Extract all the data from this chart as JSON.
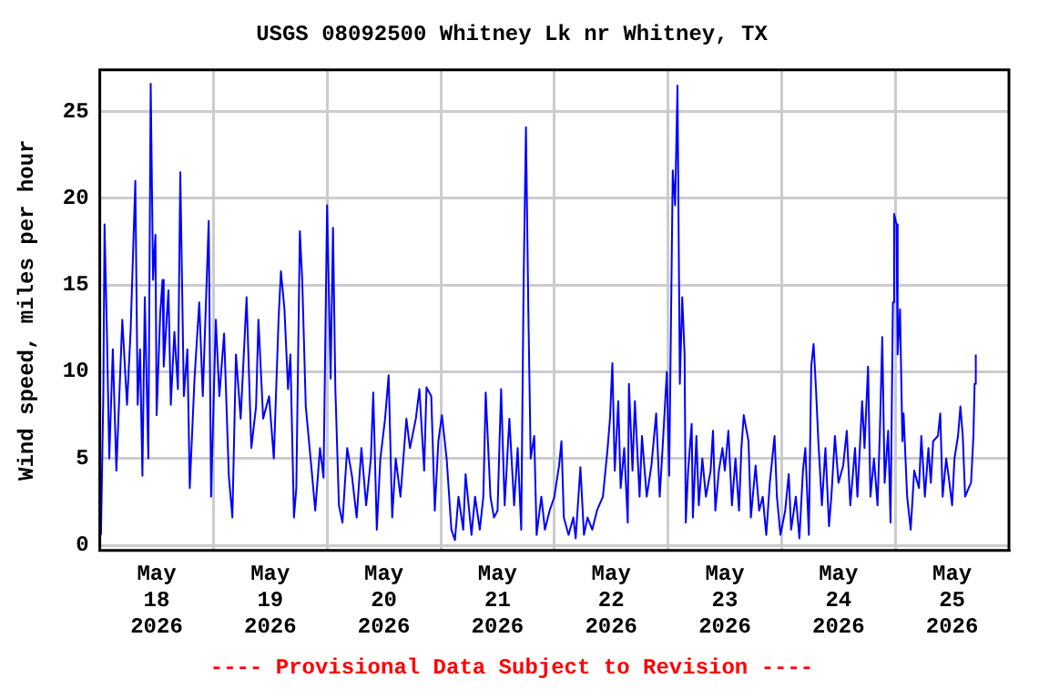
{
  "chart_data": {
    "type": "line",
    "title": "USGS 08092500 Whitney Lk nr Whitney, TX",
    "ylabel": "Wind speed, miles per hour",
    "annotations": [
      "---- Provisional Data Subject to Revision ----"
    ],
    "xlim": [
      "2026-05-18T00:00",
      "2026-05-26T00:00"
    ],
    "xticks": [
      {
        "value": "2026-05-18T12:00",
        "label": "May\n18\n2026"
      },
      {
        "value": "2026-05-19T00:00",
        "label": null
      },
      {
        "value": "2026-05-19T12:00",
        "label": "May\n19\n2026"
      },
      {
        "value": "2026-05-20T00:00",
        "label": null
      },
      {
        "value": "2026-05-20T12:00",
        "label": "May\n20\n2026"
      },
      {
        "value": "2026-05-21T00:00",
        "label": null
      },
      {
        "value": "2026-05-21T12:00",
        "label": "May\n21\n2026"
      },
      {
        "value": "2026-05-22T00:00",
        "label": null
      },
      {
        "value": "2026-05-22T12:00",
        "label": "May\n22\n2026"
      },
      {
        "value": "2026-05-23T00:00",
        "label": null
      },
      {
        "value": "2026-05-23T12:00",
        "label": "May\n23\n2026"
      },
      {
        "value": "2026-05-24T00:00",
        "label": null
      },
      {
        "value": "2026-05-24T12:00",
        "label": "May\n24\n2026"
      },
      {
        "value": "2026-05-25T00:00",
        "label": null
      },
      {
        "value": "2026-05-25T12:00",
        "label": "May\n25\n2026"
      }
    ],
    "ylim": [
      -0.3,
      27.4
    ],
    "yticks": [
      0,
      5,
      10,
      15,
      20,
      25
    ],
    "grid": true,
    "legend": false,
    "marker": "none",
    "line_style": "solid",
    "series": [
      {
        "color": "#0000ff",
        "x": [
          "2026-05-18T00:15",
          "2026-05-18T00:45",
          "2026-05-18T01:00",
          "2026-05-18T01:30",
          "2026-05-18T02:00",
          "2026-05-18T02:45",
          "2026-05-18T03:30",
          "2026-05-18T04:45",
          "2026-05-18T05:45",
          "2026-05-18T06:30",
          "2026-05-18T07:30",
          "2026-05-18T08:00",
          "2026-05-18T08:30",
          "2026-05-18T09:00",
          "2026-05-18T09:30",
          "2026-05-18T10:15",
          "2026-05-18T10:45",
          "2026-05-18T11:15",
          "2026-05-18T11:45",
          "2026-05-18T12:00",
          "2026-05-18T12:45",
          "2026-05-18T13:15",
          "2026-05-18T13:30",
          "2026-05-18T14:30",
          "2026-05-18T15:00",
          "2026-05-18T15:45",
          "2026-05-18T16:30",
          "2026-05-18T17:00",
          "2026-05-18T17:45",
          "2026-05-18T18:30",
          "2026-05-18T19:00",
          "2026-05-18T20:00",
          "2026-05-18T21:00",
          "2026-05-18T21:45",
          "2026-05-18T23:00",
          "2026-05-18T23:30",
          "2026-05-19T00:30",
          "2026-05-19T01:15",
          "2026-05-19T02:15",
          "2026-05-19T03:15",
          "2026-05-19T04:00",
          "2026-05-19T04:45",
          "2026-05-19T05:45",
          "2026-05-19T07:00",
          "2026-05-19T08:00",
          "2026-05-19T09:00",
          "2026-05-19T09:30",
          "2026-05-19T10:30",
          "2026-05-19T11:45",
          "2026-05-19T12:45",
          "2026-05-19T13:45",
          "2026-05-19T14:15",
          "2026-05-19T15:00",
          "2026-05-19T15:45",
          "2026-05-19T16:15",
          "2026-05-19T17:00",
          "2026-05-19T17:30",
          "2026-05-19T18:15",
          "2026-05-19T18:45",
          "2026-05-19T19:30",
          "2026-05-19T20:45",
          "2026-05-19T21:30",
          "2026-05-19T22:30",
          "2026-05-19T23:15",
          "2026-05-20T00:00",
          "2026-05-20T00:45",
          "2026-05-20T01:15",
          "2026-05-20T01:45",
          "2026-05-20T02:30",
          "2026-05-20T03:15",
          "2026-05-20T03:45",
          "2026-05-20T04:15",
          "2026-05-20T05:15",
          "2026-05-20T06:15",
          "2026-05-20T07:15",
          "2026-05-20T08:15",
          "2026-05-20T09:15",
          "2026-05-20T09:45",
          "2026-05-20T10:30",
          "2026-05-20T11:15",
          "2026-05-20T12:15",
          "2026-05-20T13:00",
          "2026-05-20T13:45",
          "2026-05-20T14:30",
          "2026-05-20T15:30",
          "2026-05-20T16:45",
          "2026-05-20T17:30",
          "2026-05-20T18:45",
          "2026-05-20T19:30",
          "2026-05-20T20:30",
          "2026-05-20T21:00",
          "2026-05-20T22:00",
          "2026-05-20T22:45",
          "2026-05-20T23:30",
          "2026-05-21T00:15",
          "2026-05-21T01:15",
          "2026-05-21T02:15",
          "2026-05-21T03:00",
          "2026-05-21T03:45",
          "2026-05-21T04:45",
          "2026-05-21T05:15",
          "2026-05-21T06:30",
          "2026-05-21T07:15",
          "2026-05-21T08:15",
          "2026-05-21T09:00",
          "2026-05-21T09:30",
          "2026-05-21T10:30",
          "2026-05-21T11:15",
          "2026-05-21T12:00",
          "2026-05-21T12:45",
          "2026-05-21T13:30",
          "2026-05-21T14:30",
          "2026-05-21T15:30",
          "2026-05-21T16:15",
          "2026-05-21T17:00",
          "2026-05-21T17:30",
          "2026-05-21T18:00",
          "2026-05-21T18:30",
          "2026-05-21T19:00",
          "2026-05-21T19:45",
          "2026-05-21T20:15",
          "2026-05-21T21:15",
          "2026-05-21T22:00",
          "2026-05-21T23:00",
          "2026-05-22T00:00",
          "2026-05-22T01:00",
          "2026-05-22T01:30",
          "2026-05-22T02:00",
          "2026-05-22T03:00",
          "2026-05-22T04:00",
          "2026-05-22T04:30",
          "2026-05-22T05:30",
          "2026-05-22T06:15",
          "2026-05-22T07:00",
          "2026-05-22T08:00",
          "2026-05-22T09:00",
          "2026-05-22T10:15",
          "2026-05-22T11:15",
          "2026-05-22T11:45",
          "2026-05-22T12:15",
          "2026-05-22T12:45",
          "2026-05-22T13:30",
          "2026-05-22T14:00",
          "2026-05-22T14:45",
          "2026-05-22T15:30",
          "2026-05-22T15:45",
          "2026-05-22T16:30",
          "2026-05-22T17:00",
          "2026-05-22T18:00",
          "2026-05-22T18:30",
          "2026-05-22T19:30",
          "2026-05-22T20:30",
          "2026-05-22T21:30",
          "2026-05-22T22:15",
          "2026-05-22T23:00",
          "2026-05-22T23:45",
          "2026-05-23T00:15",
          "2026-05-23T01:00",
          "2026-05-23T01:30",
          "2026-05-23T02:00",
          "2026-05-23T02:30",
          "2026-05-23T03:00",
          "2026-05-23T03:30",
          "2026-05-23T03:45",
          "2026-05-23T04:15",
          "2026-05-23T05:00",
          "2026-05-23T05:15",
          "2026-05-23T06:00",
          "2026-05-23T06:30",
          "2026-05-23T07:15",
          "2026-05-23T08:00",
          "2026-05-23T09:00",
          "2026-05-23T09:30",
          "2026-05-23T10:00",
          "2026-05-23T10:45",
          "2026-05-23T11:30",
          "2026-05-23T12:00",
          "2026-05-23T12:45",
          "2026-05-23T13:30",
          "2026-05-23T14:15",
          "2026-05-23T15:00",
          "2026-05-23T15:30",
          "2026-05-23T16:00",
          "2026-05-23T17:00",
          "2026-05-23T17:30",
          "2026-05-23T18:30",
          "2026-05-23T19:15",
          "2026-05-23T20:00",
          "2026-05-23T20:45",
          "2026-05-23T21:30",
          "2026-05-23T22:30",
          "2026-05-23T23:00",
          "2026-05-23T23:45",
          "2026-05-24T00:45",
          "2026-05-24T01:30",
          "2026-05-24T02:00",
          "2026-05-24T03:00",
          "2026-05-24T03:45",
          "2026-05-24T04:30",
          "2026-05-24T05:00",
          "2026-05-24T05:45",
          "2026-05-24T06:15",
          "2026-05-24T06:45",
          "2026-05-24T07:15",
          "2026-05-24T07:45",
          "2026-05-24T08:30",
          "2026-05-24T09:15",
          "2026-05-24T10:00",
          "2026-05-24T10:30",
          "2026-05-24T11:15",
          "2026-05-24T12:00",
          "2026-05-24T13:00",
          "2026-05-24T13:45",
          "2026-05-24T14:30",
          "2026-05-24T15:30",
          "2026-05-24T16:00",
          "2026-05-24T17:00",
          "2026-05-24T17:30",
          "2026-05-24T18:15",
          "2026-05-24T18:45",
          "2026-05-24T19:30",
          "2026-05-24T20:15",
          "2026-05-24T20:45",
          "2026-05-24T21:15",
          "2026-05-24T21:45",
          "2026-05-24T22:30",
          "2026-05-24T23:00",
          "2026-05-24T23:30",
          "2026-05-24T23:45",
          "2026-05-25T00:15",
          "2026-05-25T00:30",
          "2026-05-25T01:00",
          "2026-05-25T01:30",
          "2026-05-25T01:45",
          "2026-05-25T02:30",
          "2026-05-25T03:15",
          "2026-05-25T04:00",
          "2026-05-25T05:00",
          "2026-05-25T05:30",
          "2026-05-25T06:15",
          "2026-05-25T07:00",
          "2026-05-25T07:30",
          "2026-05-25T08:00",
          "2026-05-25T09:00",
          "2026-05-25T09:30",
          "2026-05-25T10:00",
          "2026-05-25T10:45",
          "2026-05-25T11:15",
          "2026-05-25T12:00",
          "2026-05-25T12:30",
          "2026-05-25T13:15",
          "2026-05-25T13:45",
          "2026-05-25T14:15",
          "2026-05-25T14:45",
          "2026-05-25T15:30",
          "2026-05-25T16:00",
          "2026-05-25T16:30",
          "2026-05-25T16:45",
          "2026-05-25T17:00"
        ],
        "values": [
          0.6,
          8.8,
          18.5,
          12.3,
          5,
          11.3,
          4.3,
          13,
          8.1,
          12.3,
          21,
          8.1,
          11.3,
          4,
          14.3,
          5,
          26.6,
          15.3,
          17.9,
          7.5,
          13.3,
          15.3,
          10.3,
          14.7,
          8.1,
          12.3,
          9,
          21.5,
          8.6,
          11.3,
          3.3,
          9.6,
          14,
          8.6,
          18.7,
          2.8,
          13,
          8.6,
          12.2,
          4,
          1.6,
          11,
          7.3,
          14.3,
          5.6,
          8,
          13,
          7.3,
          8.6,
          5,
          13,
          15.8,
          13.6,
          9,
          11,
          1.6,
          3.3,
          18.1,
          15.3,
          8,
          4.3,
          2,
          5.6,
          3.9,
          19.6,
          9.6,
          18.3,
          9,
          2.3,
          1.3,
          3.5,
          5.6,
          4,
          1.6,
          5.6,
          2.3,
          5,
          8.8,
          0.9,
          5,
          7.3,
          9.8,
          1.6,
          5,
          2.8,
          7.3,
          5.6,
          7.3,
          9,
          4.3,
          9.1,
          8.6,
          2,
          6,
          7.5,
          5,
          0.9,
          0.3,
          2.8,
          0.9,
          4.1,
          0.6,
          2.8,
          0.9,
          2.8,
          8.8,
          2.8,
          1.6,
          2,
          9,
          2.3,
          7.3,
          2.3,
          5.6,
          0.9,
          15,
          24.1,
          13.6,
          5,
          6.3,
          0.6,
          2.8,
          0.9,
          2,
          2.8,
          4.6,
          6,
          1.6,
          0.6,
          1.6,
          0.4,
          4.5,
          0.6,
          1.6,
          0.9,
          2,
          2.8,
          5.6,
          7.3,
          10.5,
          4.3,
          8.3,
          3.3,
          5.6,
          1.3,
          9.3,
          4.3,
          8.3,
          2.8,
          6.3,
          2.8,
          4.6,
          7.6,
          2.8,
          6.3,
          10,
          4,
          21.6,
          19.6,
          26.5,
          9.3,
          14.3,
          11,
          1.3,
          4.3,
          7,
          1.6,
          6.3,
          2.3,
          5,
          2.8,
          4.3,
          6.6,
          2,
          4.3,
          5.6,
          4.3,
          6.6,
          2.3,
          5,
          2,
          5.6,
          7.5,
          6,
          1.6,
          4.6,
          2,
          2.8,
          0.6,
          3.6,
          6.3,
          2.8,
          0.6,
          2,
          4.1,
          0.9,
          2.8,
          0.4,
          4.3,
          5.6,
          0.6,
          10.3,
          11.6,
          9,
          6,
          2.3,
          5.6,
          1.1,
          2.8,
          6.3,
          3.6,
          4.6,
          6.6,
          2.3,
          5.6,
          2.8,
          8.3,
          5.6,
          10.3,
          2.8,
          5,
          2.3,
          6.6,
          12,
          3.6,
          6.6,
          1.3,
          14,
          19.1,
          18.5,
          11,
          13.6,
          6,
          7.6,
          2.8,
          0.9,
          4.3,
          3.3,
          6.3,
          2.8,
          5.6,
          3.6,
          6,
          6.3,
          7.6,
          2.8,
          5,
          4,
          2.3,
          5,
          6.3,
          8,
          6.3,
          2.8,
          3.3,
          3.6,
          6.3,
          9.3,
          11
        ]
      }
    ]
  }
}
